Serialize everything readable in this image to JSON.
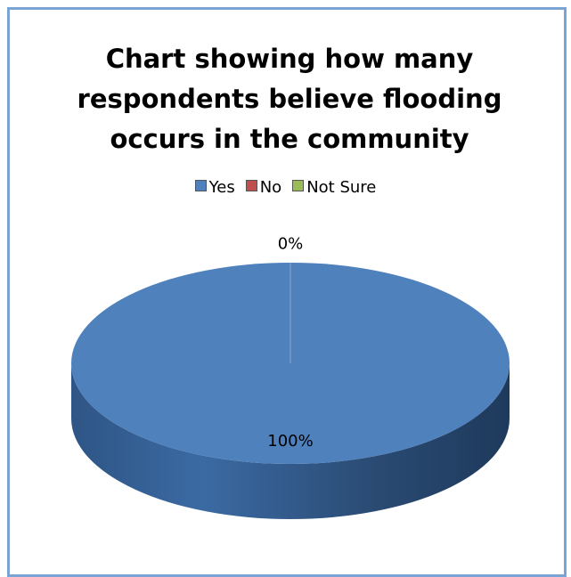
{
  "chart_data": {
    "type": "pie",
    "title": "Chart showing how many respondents believe flooding occurs in the community",
    "categories": [
      "Yes",
      "No",
      "Not Sure"
    ],
    "values": [
      100,
      0,
      0
    ],
    "value_labels": [
      "100%",
      "0%",
      null
    ],
    "colors": [
      "#4f81bd",
      "#c0504d",
      "#9bbb59"
    ],
    "legend": "top"
  }
}
